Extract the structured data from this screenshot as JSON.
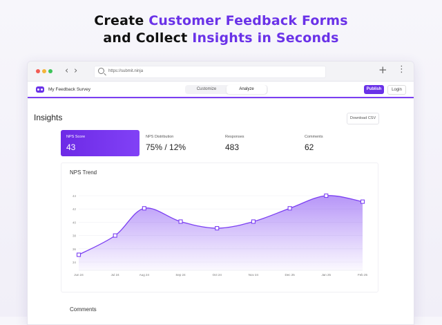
{
  "headline": {
    "line1_prefix": "Create ",
    "line1_highlight": "Customer Feedback Forms",
    "line2_prefix": "and Collect ",
    "line2_highlight": "Insights in Seconds"
  },
  "browser": {
    "url": "https://submit.ninja",
    "back_glyph": "‹",
    "forward_glyph": "›",
    "new_tab_glyph": "+",
    "menu_glyph": "⋮",
    "dot_colors": [
      "#f25c54",
      "#f4b43a",
      "#3ec35a"
    ]
  },
  "app": {
    "name": "My Feedback Survey",
    "tabs": [
      {
        "label": "Customize",
        "active": false
      },
      {
        "label": "Analyze",
        "active": true
      }
    ],
    "publish_label": "Publish",
    "login_label": "Login",
    "accent": "#6a32e8"
  },
  "insights": {
    "title": "Insights",
    "download_label": "Download CSV",
    "stats": [
      {
        "label": "NPS Score",
        "value": "43"
      },
      {
        "label": "NPS Distribution",
        "value": "75% / 12%"
      },
      {
        "label": "Responses",
        "value": "483"
      },
      {
        "label": "Comments",
        "value": "62"
      }
    ]
  },
  "chart_data": {
    "type": "area",
    "title": "NPS Trend",
    "categories": [
      "Jun 24",
      "Jul 24",
      "Aug 24",
      "Sep 24",
      "Oct 24",
      "Nov 24",
      "Dec 25",
      "Jan 25",
      "Feb 25"
    ],
    "x_positions": [
      0,
      1,
      1.8,
      2.8,
      3.8,
      4.8,
      5.8,
      6.8,
      7.8
    ],
    "y_ticks": [
      "44",
      "42",
      "40",
      "38",
      "36",
      "34"
    ],
    "y_tick_values": [
      44,
      42,
      40,
      38,
      36,
      34
    ],
    "values": [
      35.1,
      38,
      42.1,
      40.1,
      39.1,
      40.1,
      42.1,
      44,
      43.1
    ],
    "ylim": [
      34,
      44
    ],
    "color": "#7b3ff2",
    "grid": true
  },
  "comments": {
    "title": "Comments"
  }
}
